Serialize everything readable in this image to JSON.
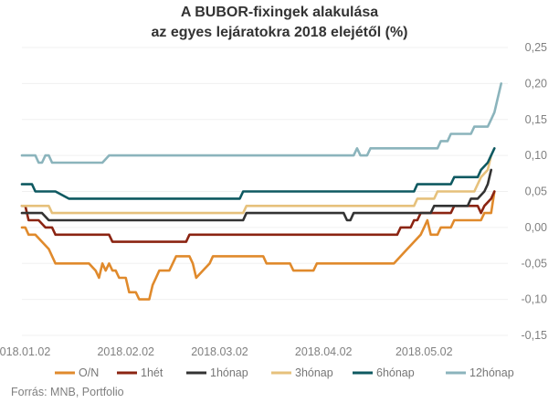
{
  "chart_data": {
    "type": "line",
    "title": [
      "A BUBOR-fixingek alakulása",
      "az egyes lejáratokra 2018 elejétől (%)"
    ],
    "source": "Forrás: MNB, Portfolio",
    "xlabel": "",
    "ylabel": "",
    "x_start_day": 0,
    "x_end_day": 145,
    "x_ticks": [
      {
        "day": 0,
        "label": "2018.01.02"
      },
      {
        "day": 31,
        "label": "2018.02.02"
      },
      {
        "day": 59,
        "label": "2018.03.02"
      },
      {
        "day": 90,
        "label": "2018.04.02"
      },
      {
        "day": 120,
        "label": "2018.05.02"
      }
    ],
    "ylim": [
      -0.15,
      0.25
    ],
    "y_ticks": [
      "-0,15",
      "-0,10",
      "-0,05",
      "0,00",
      "0,05",
      "0,10",
      "0,15",
      "0,20",
      "0,25"
    ],
    "y_tick_values": [
      -0.15,
      -0.1,
      -0.05,
      0.0,
      0.05,
      0.1,
      0.15,
      0.2,
      0.25
    ],
    "series": [
      {
        "name": "O/N",
        "color": "#e08a2c",
        "points": [
          [
            0,
            0.0
          ],
          [
            1,
            0.0
          ],
          [
            2,
            -0.01
          ],
          [
            4,
            -0.01
          ],
          [
            6,
            -0.02
          ],
          [
            8,
            -0.03
          ],
          [
            10,
            -0.05
          ],
          [
            20,
            -0.05
          ],
          [
            22,
            -0.06
          ],
          [
            23,
            -0.07
          ],
          [
            24,
            -0.05
          ],
          [
            25,
            -0.06
          ],
          [
            26,
            -0.05
          ],
          [
            27,
            -0.06
          ],
          [
            28,
            -0.06
          ],
          [
            29,
            -0.07
          ],
          [
            31,
            -0.07
          ],
          [
            32,
            -0.09
          ],
          [
            34,
            -0.09
          ],
          [
            35,
            -0.1
          ],
          [
            38,
            -0.1
          ],
          [
            39,
            -0.08
          ],
          [
            40,
            -0.07
          ],
          [
            41,
            -0.06
          ],
          [
            44,
            -0.06
          ],
          [
            45,
            -0.05
          ],
          [
            46,
            -0.04
          ],
          [
            50,
            -0.04
          ],
          [
            51,
            -0.05
          ],
          [
            52,
            -0.07
          ],
          [
            54,
            -0.06
          ],
          [
            56,
            -0.05
          ],
          [
            57,
            -0.04
          ],
          [
            72,
            -0.04
          ],
          [
            73,
            -0.05
          ],
          [
            80,
            -0.05
          ],
          [
            81,
            -0.06
          ],
          [
            87,
            -0.06
          ],
          [
            88,
            -0.05
          ],
          [
            111,
            -0.05
          ],
          [
            113,
            -0.04
          ],
          [
            115,
            -0.03
          ],
          [
            117,
            -0.02
          ],
          [
            119,
            -0.01
          ],
          [
            120,
            0.0
          ],
          [
            121,
            0.01
          ],
          [
            122,
            -0.01
          ],
          [
            124,
            -0.01
          ],
          [
            125,
            0.0
          ],
          [
            128,
            0.0
          ],
          [
            129,
            0.01
          ],
          [
            137,
            0.01
          ],
          [
            138,
            0.02
          ],
          [
            140,
            0.02
          ],
          [
            141,
            0.05
          ]
        ]
      },
      {
        "name": "1hét",
        "color": "#8b2412",
        "points": [
          [
            0,
            0.03
          ],
          [
            1,
            0.03
          ],
          [
            2,
            0.01
          ],
          [
            5,
            0.01
          ],
          [
            7,
            0.0
          ],
          [
            9,
            0.0
          ],
          [
            10,
            -0.01
          ],
          [
            26,
            -0.01
          ],
          [
            27,
            -0.02
          ],
          [
            49,
            -0.02
          ],
          [
            50,
            -0.01
          ],
          [
            112,
            -0.01
          ],
          [
            113,
            0.0
          ],
          [
            116,
            0.0
          ],
          [
            117,
            0.01
          ],
          [
            118,
            0.01
          ],
          [
            119,
            0.02
          ],
          [
            128,
            0.02
          ],
          [
            129,
            0.03
          ],
          [
            136,
            0.03
          ],
          [
            137,
            0.02
          ],
          [
            138,
            0.03
          ],
          [
            140,
            0.04
          ],
          [
            141,
            0.05
          ]
        ]
      },
      {
        "name": "1hónap",
        "color": "#333333",
        "points": [
          [
            0,
            0.02
          ],
          [
            6,
            0.02
          ],
          [
            8,
            0.01
          ],
          [
            66,
            0.01
          ],
          [
            67,
            0.02
          ],
          [
            96,
            0.02
          ],
          [
            97,
            0.01
          ],
          [
            98,
            0.01
          ],
          [
            99,
            0.02
          ],
          [
            122,
            0.02
          ],
          [
            123,
            0.03
          ],
          [
            133,
            0.03
          ],
          [
            134,
            0.04
          ],
          [
            136,
            0.04
          ],
          [
            138,
            0.05
          ],
          [
            139,
            0.06
          ],
          [
            140,
            0.08
          ]
        ]
      },
      {
        "name": "3hónap",
        "color": "#e6c17c",
        "points": [
          [
            0,
            0.03
          ],
          [
            8,
            0.03
          ],
          [
            9,
            0.02
          ],
          [
            66,
            0.02
          ],
          [
            67,
            0.03
          ],
          [
            117,
            0.03
          ],
          [
            118,
            0.04
          ],
          [
            123,
            0.04
          ],
          [
            124,
            0.05
          ],
          [
            135,
            0.05
          ],
          [
            137,
            0.07
          ],
          [
            139,
            0.08
          ],
          [
            140,
            0.1
          ]
        ]
      },
      {
        "name": "6hónap",
        "color": "#0e5961",
        "points": [
          [
            0,
            0.06
          ],
          [
            3,
            0.06
          ],
          [
            4,
            0.05
          ],
          [
            9,
            0.05
          ],
          [
            10,
            0.05
          ],
          [
            14,
            0.04
          ],
          [
            65,
            0.04
          ],
          [
            66,
            0.05
          ],
          [
            117,
            0.05
          ],
          [
            118,
            0.06
          ],
          [
            128,
            0.06
          ],
          [
            129,
            0.07
          ],
          [
            136,
            0.07
          ],
          [
            137,
            0.08
          ],
          [
            139,
            0.09
          ],
          [
            141,
            0.11
          ]
        ]
      },
      {
        "name": "12hónap",
        "color": "#8bb4bc",
        "points": [
          [
            0,
            0.1
          ],
          [
            4,
            0.1
          ],
          [
            5,
            0.09
          ],
          [
            6,
            0.09
          ],
          [
            7,
            0.1
          ],
          [
            8,
            0.1
          ],
          [
            9,
            0.09
          ],
          [
            24,
            0.09
          ],
          [
            26,
            0.1
          ],
          [
            99,
            0.1
          ],
          [
            100,
            0.11
          ],
          [
            101,
            0.1
          ],
          [
            103,
            0.1
          ],
          [
            104,
            0.11
          ],
          [
            124,
            0.11
          ],
          [
            125,
            0.12
          ],
          [
            127,
            0.12
          ],
          [
            128,
            0.13
          ],
          [
            134,
            0.13
          ],
          [
            135,
            0.14
          ],
          [
            139,
            0.14
          ],
          [
            140,
            0.15
          ],
          [
            141,
            0.16
          ],
          [
            142,
            0.18
          ],
          [
            143,
            0.2
          ]
        ]
      }
    ]
  }
}
